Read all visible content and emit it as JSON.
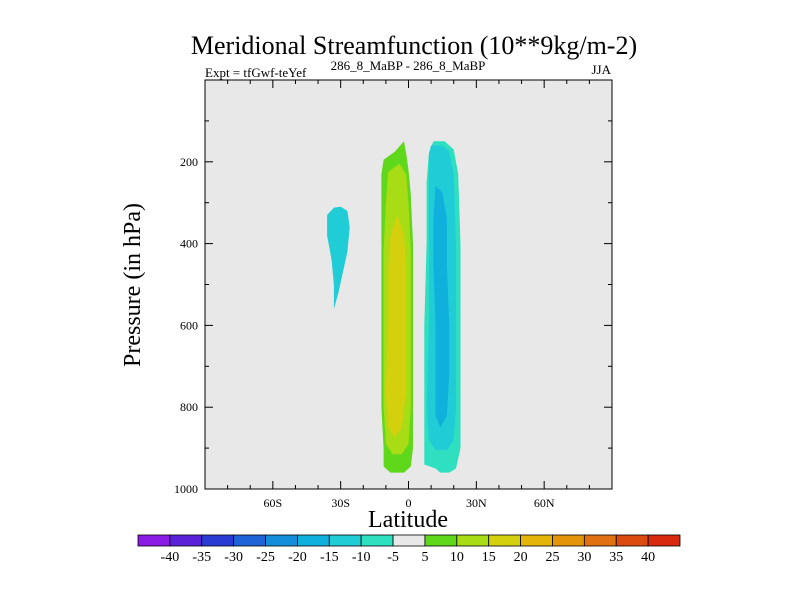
{
  "chart_data": {
    "type": "contour",
    "title": "Meridional Streamfunction (10**9kg/m-2)",
    "subtitle_left": "Expt = tfGwf-teYef",
    "subtitle_center": "286_8_MaBP - 286_8_MaBP",
    "subtitle_right": "JJA",
    "xlabel": "Latitude",
    "ylabel": "Pressure (in hPa)",
    "x_range": [
      -90,
      90
    ],
    "y_range": [
      1000,
      0
    ],
    "x_ticks": [
      {
        "value": -60,
        "label": "60S"
      },
      {
        "value": -30,
        "label": "30S"
      },
      {
        "value": 0,
        "label": "0"
      },
      {
        "value": 30,
        "label": "30N"
      },
      {
        "value": 60,
        "label": "60N"
      }
    ],
    "y_ticks": [
      {
        "value": 200,
        "label": "200"
      },
      {
        "value": 400,
        "label": "400"
      },
      {
        "value": 600,
        "label": "600"
      },
      {
        "value": 800,
        "label": "800"
      },
      {
        "value": 1000,
        "label": "1000"
      }
    ],
    "background_color": "#e8e8e8",
    "colorbar": {
      "labels": [
        "-40",
        "-35",
        "-30",
        "-25",
        "-20",
        "-15",
        "-10",
        "-5",
        "5",
        "10",
        "15",
        "20",
        "25",
        "30",
        "35",
        "40"
      ],
      "colors": [
        "#8a1ce6",
        "#5a22d8",
        "#2a3bd4",
        "#1f63d8",
        "#128fd8",
        "#10b0dc",
        "#20ccd6",
        "#2fe0c0",
        "#e8e8e8",
        "#5fd81c",
        "#a8dc14",
        "#d4d00e",
        "#e4b40a",
        "#e49408",
        "#e07010",
        "#dc4a10",
        "#d82a0e"
      ]
    },
    "regions": [
      {
        "name": "cell-sh-small",
        "level": -10,
        "color": "#20ccd6",
        "points": [
          [
            -30,
            310
          ],
          [
            -27,
            320
          ],
          [
            -26,
            360
          ],
          [
            -27,
            420
          ],
          [
            -29,
            470
          ],
          [
            -31,
            520
          ],
          [
            -33,
            560
          ],
          [
            -33,
            500
          ],
          [
            -34,
            440
          ],
          [
            -36,
            380
          ],
          [
            -36,
            330
          ],
          [
            -33,
            312
          ]
        ]
      },
      {
        "name": "cell-eq-north",
        "level": 5,
        "color": "#5fd81c",
        "points": [
          [
            -2,
            150
          ],
          [
            -1,
            180
          ],
          [
            0,
            220
          ],
          [
            1,
            280
          ],
          [
            2,
            400
          ],
          [
            2,
            600
          ],
          [
            2,
            800
          ],
          [
            2,
            900
          ],
          [
            1,
            945
          ],
          [
            -2,
            960
          ],
          [
            -8,
            960
          ],
          [
            -11,
            945
          ],
          [
            -11,
            900
          ],
          [
            -12,
            800
          ],
          [
            -12,
            600
          ],
          [
            -12,
            400
          ],
          [
            -12,
            230
          ],
          [
            -11,
            195
          ],
          [
            -6,
            175
          ]
        ]
      },
      {
        "name": "cell-eq-north-10",
        "level": 10,
        "color": "#a8dc14",
        "points": [
          [
            -4,
            205
          ],
          [
            -1,
            230
          ],
          [
            0,
            300
          ],
          [
            1,
            420
          ],
          [
            1,
            600
          ],
          [
            1,
            800
          ],
          [
            0,
            890
          ],
          [
            -3,
            915
          ],
          [
            -7,
            915
          ],
          [
            -10,
            890
          ],
          [
            -11,
            800
          ],
          [
            -11,
            600
          ],
          [
            -11,
            420
          ],
          [
            -10,
            300
          ],
          [
            -9,
            225
          ]
        ]
      },
      {
        "name": "cell-eq-north-15",
        "level": 15,
        "color": "#d4d00e",
        "points": [
          [
            -5,
            330
          ],
          [
            -2,
            380
          ],
          [
            -1,
            460
          ],
          [
            -1,
            600
          ],
          [
            -1,
            760
          ],
          [
            -3,
            850
          ],
          [
            -6,
            875
          ],
          [
            -9,
            850
          ],
          [
            -10,
            760
          ],
          [
            -9,
            600
          ],
          [
            -9,
            460
          ],
          [
            -8,
            380
          ]
        ]
      },
      {
        "name": "cell-eq-south",
        "level": -5,
        "color": "#2fe0c0",
        "points": [
          [
            11,
            150
          ],
          [
            16,
            150
          ],
          [
            20,
            170
          ],
          [
            22,
            230
          ],
          [
            23,
            400
          ],
          [
            23,
            600
          ],
          [
            23,
            800
          ],
          [
            23,
            900
          ],
          [
            21,
            950
          ],
          [
            18,
            960
          ],
          [
            14,
            960
          ],
          [
            12,
            950
          ],
          [
            7,
            940
          ],
          [
            7,
            900
          ],
          [
            7,
            800
          ],
          [
            7,
            600
          ],
          [
            8,
            400
          ],
          [
            8,
            250
          ],
          [
            9,
            180
          ]
        ]
      },
      {
        "name": "cell-eq-south-10",
        "level": -10,
        "color": "#20ccd6",
        "points": [
          [
            10,
            160
          ],
          [
            15,
            160
          ],
          [
            18,
            175
          ],
          [
            20,
            230
          ],
          [
            21,
            400
          ],
          [
            21,
            600
          ],
          [
            21,
            800
          ],
          [
            20,
            880
          ],
          [
            17,
            905
          ],
          [
            12,
            905
          ],
          [
            9,
            880
          ],
          [
            8,
            800
          ],
          [
            9,
            600
          ],
          [
            9,
            400
          ],
          [
            9,
            240
          ],
          [
            9,
            180
          ]
        ]
      },
      {
        "name": "cell-eq-south-15",
        "level": -15,
        "color": "#10b0dc",
        "points": [
          [
            12,
            260
          ],
          [
            15,
            275
          ],
          [
            17,
            340
          ],
          [
            17,
            450
          ],
          [
            18,
            600
          ],
          [
            18,
            720
          ],
          [
            17,
            820
          ],
          [
            14,
            850
          ],
          [
            12,
            820
          ],
          [
            12,
            720
          ],
          [
            12,
            600
          ],
          [
            11,
            450
          ],
          [
            11,
            340
          ]
        ]
      }
    ]
  }
}
